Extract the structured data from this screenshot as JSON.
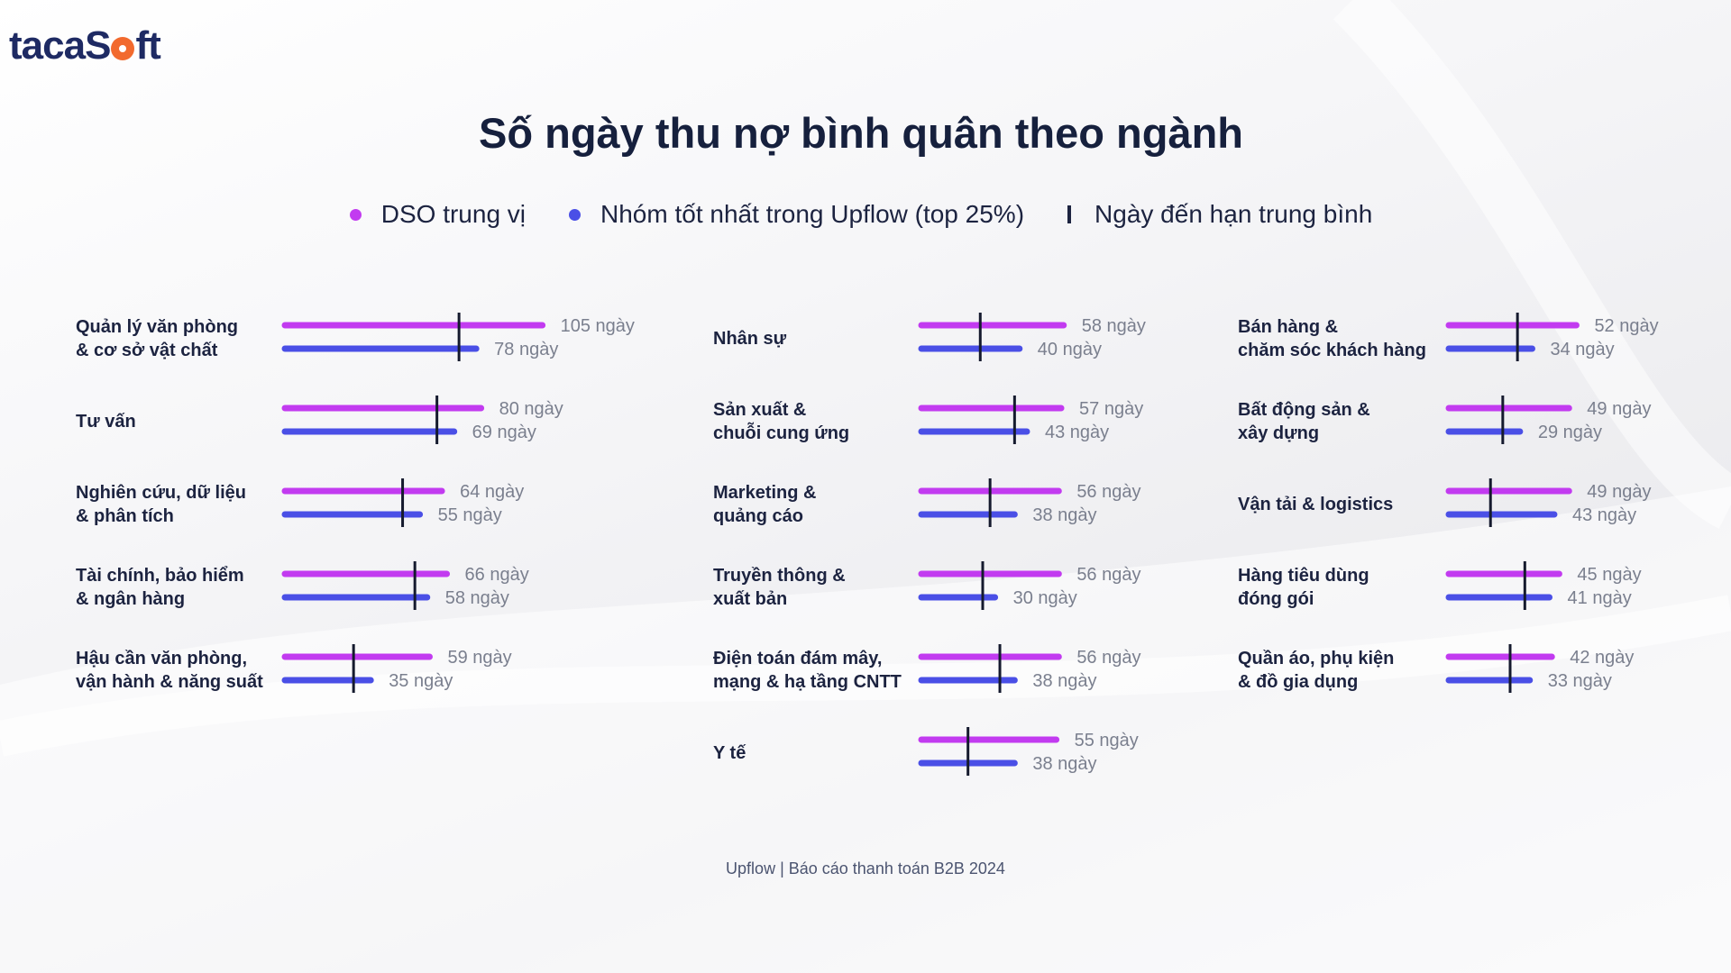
{
  "brand": {
    "logo_part1": "taca",
    "logo_part2": "S",
    "logo_part3": "ft"
  },
  "title": "Số ngày thu nợ bình quân theo ngành",
  "legend": {
    "median_label": "DSO trung vị",
    "best_label": "Nhóm tốt nhất trong Upflow (top 25%)",
    "due_label": "Ngày đến hạn trung bình"
  },
  "colors": {
    "median": "#c23bf0",
    "best": "#4a4fe6",
    "due": "#151a2e",
    "value_text": "#7a7f8e"
  },
  "footer": "Upflow  |  Báo cáo thanh toán B2B 2024",
  "unit": "ngày",
  "chart_data": {
    "type": "bar",
    "series": [
      {
        "name": "DSO trung vị"
      },
      {
        "name": "Nhóm tốt nhất trong Upflow (top 25%)"
      },
      {
        "name": "Ngày đến hạn trung bình"
      }
    ],
    "columns": [
      [
        {
          "label": [
            "Quản lý văn phòng",
            "& cơ sở vật chất"
          ],
          "median": 105,
          "best": 78,
          "due": 71
        },
        {
          "label": [
            "Tư vấn"
          ],
          "median": 80,
          "best": 69,
          "due": 62
        },
        {
          "label": [
            "Nghiên cứu, dữ liệu",
            "& phân tích"
          ],
          "median": 64,
          "best": 55,
          "due": 48
        },
        {
          "label": [
            "Tài chính, bảo hiểm",
            "& ngân hàng"
          ],
          "median": 66,
          "best": 58,
          "due": 53
        },
        {
          "label": [
            "Hậu cần văn phòng,",
            "vận hành & năng suất"
          ],
          "median": 59,
          "best": 35,
          "due": 28
        }
      ],
      [
        {
          "label": [
            "Nhân sự"
          ],
          "median": 58,
          "best": 40,
          "due": 24
        },
        {
          "label": [
            "Sản xuất &",
            "chuỗi cung ứng"
          ],
          "median": 57,
          "best": 43,
          "due": 38
        },
        {
          "label": [
            "Marketing &",
            "quảng cáo"
          ],
          "median": 56,
          "best": 38,
          "due": 28
        },
        {
          "label": [
            "Truyền thông &",
            "xuất bản"
          ],
          "median": 56,
          "best": 30,
          "due": 25
        },
        {
          "label": [
            "Điện toán đám mây,",
            "mạng & hạ tầng CNTT"
          ],
          "median": 56,
          "best": 38,
          "due": 32
        },
        {
          "label": [
            "Y tế"
          ],
          "median": 55,
          "best": 38,
          "due": 19
        }
      ],
      [
        {
          "label": [
            "Bán hàng &",
            "chăm sóc khách hàng"
          ],
          "median": 52,
          "best": 34,
          "due": 28
        },
        {
          "label": [
            "Bất động sản &",
            "xây dựng"
          ],
          "median": 49,
          "best": 29,
          "due": 22
        },
        {
          "label": [
            "Vận tải & logistics"
          ],
          "median": 49,
          "best": 43,
          "due": 17
        },
        {
          "label": [
            "Hàng tiêu dùng",
            "đóng gói"
          ],
          "median": 45,
          "best": 41,
          "due": 31
        },
        {
          "label": [
            "Quần áo, phụ kiện",
            "& đồ gia dụng"
          ],
          "median": 42,
          "best": 33,
          "due": 25
        }
      ]
    ]
  }
}
